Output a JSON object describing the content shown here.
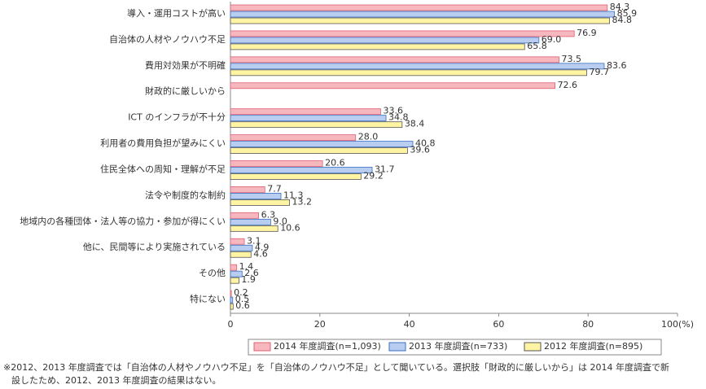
{
  "chart_data": {
    "type": "hbar",
    "categories": [
      "導入・運用コストが高い",
      "自治体の人材やノウハウ不足",
      "費用対効果が不明確",
      "財政的に厳しいから",
      "ICT のインフラが不十分",
      "利用者の費用負担が望みにくい",
      "住民全体への周知・理解が不足",
      "法令や制度的な制約",
      "地域内の各種団体・法人等の協力・参加が得にくい",
      "他に、民間等により実施されている",
      "その他",
      "特にない"
    ],
    "series": [
      {
        "name": "2014 年度調査(n=1,093)",
        "color": "#e0606f",
        "fill": "#f6b7be",
        "values": [
          84.3,
          76.9,
          73.5,
          72.6,
          33.6,
          28.0,
          20.6,
          7.7,
          6.3,
          3.1,
          1.4,
          0.2
        ],
        "value_labels": [
          "84.3",
          "76.9",
          "73.5",
          "72.6",
          "33.6",
          "28.0",
          "20.6",
          "7.7",
          "6.3",
          "3.1",
          "1.4",
          "0.2"
        ]
      },
      {
        "name": "2013 年度調査(n=733)",
        "color": "#3a6fc4",
        "fill": "#b9cdf0",
        "values": [
          85.9,
          69.0,
          83.6,
          null,
          34.8,
          40.8,
          31.7,
          11.3,
          9.0,
          4.9,
          2.6,
          0.5
        ],
        "value_labels": [
          "85.9",
          "69.0",
          "83.6",
          null,
          "34.8",
          "40.8",
          "31.7",
          "11.3",
          "9.0",
          "4.9",
          "2.6",
          "0.5"
        ]
      },
      {
        "name": "2012 年度調査(n=895)",
        "color": "#555555",
        "fill": "#fff4a3",
        "values": [
          84.8,
          65.8,
          79.7,
          null,
          38.4,
          39.6,
          29.2,
          13.2,
          10.6,
          4.6,
          1.9,
          0.6
        ],
        "value_labels": [
          "84.8",
          "65.8",
          "79.7",
          null,
          "38.4",
          "39.6",
          "29.2",
          "13.2",
          "10.6",
          "4.6",
          "1.9",
          "0.6"
        ]
      }
    ],
    "xlim": [
      0,
      100
    ],
    "xticks": [
      0,
      20,
      40,
      60,
      80,
      {
        "value": 100,
        "label": "100(%)"
      }
    ],
    "footnote": [
      "※2012、2013 年度調査では「自治体の人材やノウハウ不足」を「自治体のノウハウ不足」として聞いている。選択肢「財政的に厳しいから」は 2014 年度調査で新",
      "設したため、2012、2013 年度調査の結果はない。"
    ]
  }
}
